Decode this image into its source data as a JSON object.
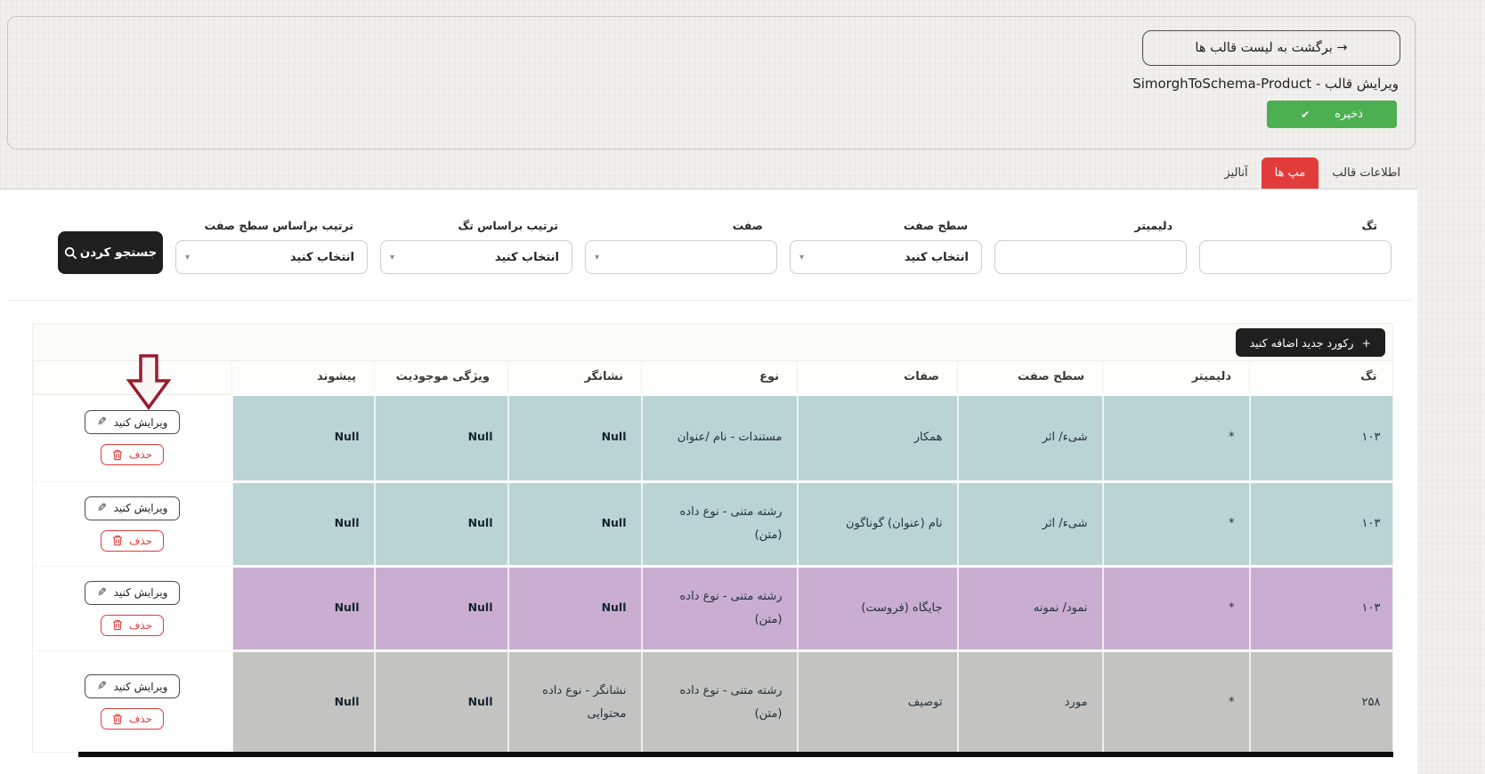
{
  "header": {
    "back_button": "برگشت به لیست قالب ها →",
    "title": "ویرایش قالب - SimorghToSchema-Product",
    "save_button": "ذخیره"
  },
  "tabs": [
    {
      "id": "template-info",
      "label": "اطلاعات قالب",
      "active": false
    },
    {
      "id": "maps",
      "label": "مپ ها",
      "active": true
    },
    {
      "id": "analyze",
      "label": "آنالیز",
      "active": false
    }
  ],
  "filters": {
    "search_button": "جستجو کردن",
    "select_placeholder": "انتخاب کنید",
    "fields": [
      {
        "id": "tag",
        "label": "تگ",
        "type": "text",
        "value": ""
      },
      {
        "id": "delimiter",
        "label": "دلیمیتر",
        "type": "text",
        "value": ""
      },
      {
        "id": "attr-level",
        "label": "سطح صفت",
        "type": "select",
        "value": "انتخاب کنید"
      },
      {
        "id": "attr",
        "label": "صفت",
        "type": "select",
        "value": ""
      },
      {
        "id": "sort-by-tag",
        "label": "ترتیب براساس تگ",
        "type": "select",
        "value": "انتخاب کنید"
      },
      {
        "id": "sort-by-attr-level",
        "label": "ترتیب براساس سطح صفت",
        "type": "select",
        "value": "انتخاب کنید"
      }
    ]
  },
  "table": {
    "add_button": "رکورد جدید اضافه کنید",
    "columns": [
      "تگ",
      "دلیمیتر",
      "سطح صفت",
      "صفات",
      "نوع",
      "نشانگر",
      "ویژگی موجودیت",
      "پیشوند",
      ""
    ],
    "actions": {
      "edit": "ویرایش کنید",
      "delete": "حذف"
    },
    "rows": [
      {
        "color": "teal",
        "tag": "۱۰۳",
        "delimiter": "*",
        "attr_level": "شیء/ اثر",
        "attrs": "همکار",
        "type": "مستندات - نام /عنوان",
        "indicator": "Null",
        "entity_prop": "Null",
        "prefix": "Null"
      },
      {
        "color": "teal",
        "tag": "۱۰۳",
        "delimiter": "*",
        "attr_level": "شیء/ اثر",
        "attrs": "نام (عنوان) گوناگون",
        "type": "رشته متنی - نوع داده (متن)",
        "indicator": "Null",
        "entity_prop": "Null",
        "prefix": "Null"
      },
      {
        "color": "purple",
        "tag": "۱۰۳",
        "delimiter": "*",
        "attr_level": "نمود/ نمونه",
        "attrs": "جایگاه (فروست)",
        "type": "رشته متنی - نوع داده (متن)",
        "indicator": "Null",
        "entity_prop": "Null",
        "prefix": "Null"
      },
      {
        "color": "grey",
        "tag": "۲۵۸",
        "delimiter": "*",
        "attr_level": "مورد",
        "attrs": "توصیف",
        "type": "رشته متنی - نوع داده (متن)",
        "indicator": "نشانگر - نوع داده محتوایی",
        "entity_prop": "Null",
        "prefix": "Null"
      }
    ]
  },
  "icons": {
    "save": "check",
    "search": "magnifier",
    "add": "plus",
    "edit": "pencil",
    "delete": "trash",
    "back": "arrow-right",
    "select_caret": "caret-down",
    "annotation": "hand-drawn-down-arrow"
  },
  "colors": {
    "accent_red": "#e23b3b",
    "accent_green": "#4caf50",
    "row_teal": "#b9d4d3",
    "row_purple": "#c9aed2",
    "row_grey": "#c3c3c1",
    "button_dark": "#1f1f1f",
    "arrow_annotation": "#9b1b2e"
  }
}
